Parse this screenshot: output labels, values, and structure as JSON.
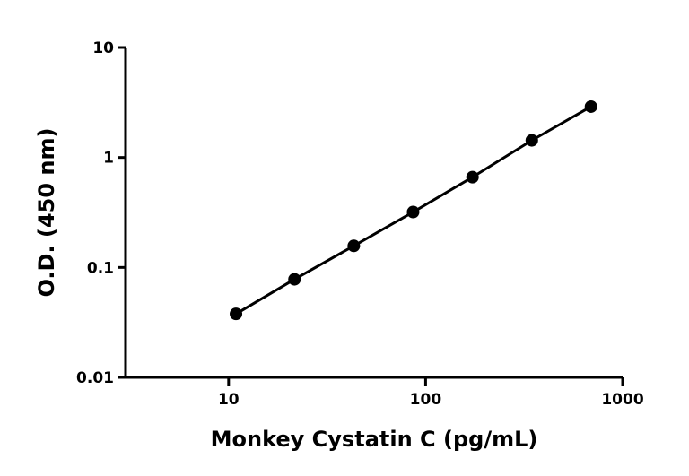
{
  "chart_data": {
    "type": "line",
    "log_x": true,
    "log_y": true,
    "x_label": "Monkey Cystatin C (pg/mL)",
    "y_label": "O.D. (450 nm)",
    "x": [
      10.9,
      21.6,
      43.2,
      86.4,
      173,
      346,
      691
    ],
    "series": [
      {
        "color": "#000000",
        "values": [
          0.0378,
          0.078,
          0.157,
          0.319,
          0.662,
          1.43,
          2.9
        ]
      }
    ],
    "xlim": [
      3,
      1000
    ],
    "xticks": [
      10,
      100,
      1000
    ],
    "ylim": [
      0.01,
      10
    ],
    "yticks": [
      0.01,
      0.1,
      1,
      10
    ]
  }
}
